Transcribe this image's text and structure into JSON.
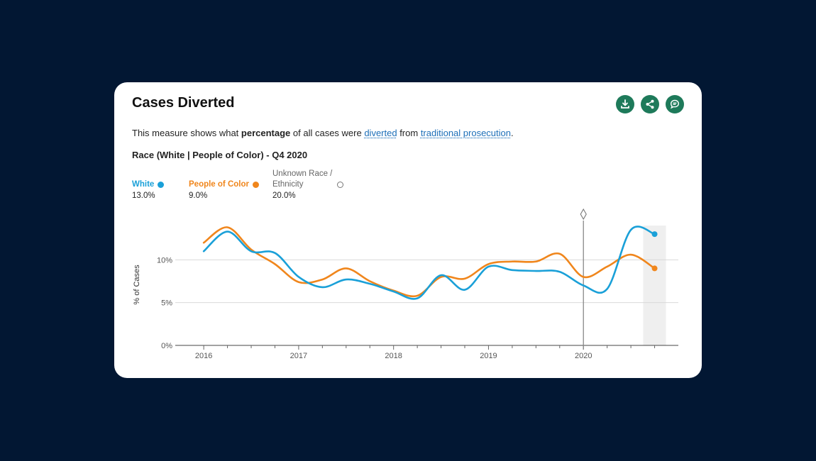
{
  "card": {
    "title": "Cases Diverted",
    "actions": [
      {
        "icon": "download-icon",
        "name": "download-button"
      },
      {
        "icon": "share-icon",
        "name": "share-button"
      },
      {
        "icon": "chat-info-icon",
        "name": "methodology-button"
      }
    ],
    "description": {
      "p1": "This measure shows what ",
      "bold": "percentage",
      "p2": " of all cases were ",
      "link1": "diverted",
      "p3": " from ",
      "link2": "traditional prosecution",
      "p4": "."
    },
    "subtitle": "Race (White | People of Color) - Q4 2020"
  },
  "legend": [
    {
      "name": "White",
      "value": "13.0%",
      "color": "#1aa0d8",
      "filled": true
    },
    {
      "name": "People of Color",
      "value": "9.0%",
      "color": "#f0861c",
      "filled": true
    },
    {
      "name": "Unknown Race / Ethnicity",
      "value": "20.0%",
      "color": "#666666",
      "filled": false
    }
  ],
  "chart_data": {
    "type": "line",
    "ylabel": "% of Cases",
    "xlabel": "",
    "xlim": [
      2015.7,
      2021.0
    ],
    "ylim": [
      0,
      15
    ],
    "y_ticks": [
      {
        "v": 0,
        "label": "0%"
      },
      {
        "v": 5,
        "label": "5%"
      },
      {
        "v": 10,
        "label": "10%"
      }
    ],
    "x_ticks": [
      {
        "v": 2016,
        "label": "2016"
      },
      {
        "v": 2017,
        "label": "2017"
      },
      {
        "v": 2018,
        "label": "2018"
      },
      {
        "v": 2019,
        "label": "2019"
      },
      {
        "v": 2020,
        "label": "2020"
      }
    ],
    "grid": true,
    "marker_year": 2020,
    "highlight": [
      2020.63,
      2020.87
    ],
    "series": [
      {
        "name": "White",
        "color": "#1aa0d8",
        "points": [
          [
            2016.0,
            11.0
          ],
          [
            2016.25,
            13.3
          ],
          [
            2016.5,
            11.0
          ],
          [
            2016.75,
            10.8
          ],
          [
            2017.0,
            8.0
          ],
          [
            2017.25,
            6.8
          ],
          [
            2017.5,
            7.7
          ],
          [
            2017.75,
            7.2
          ],
          [
            2018.0,
            6.3
          ],
          [
            2018.25,
            5.5
          ],
          [
            2018.5,
            8.2
          ],
          [
            2018.75,
            6.5
          ],
          [
            2019.0,
            9.2
          ],
          [
            2019.25,
            8.8
          ],
          [
            2019.5,
            8.7
          ],
          [
            2019.75,
            8.6
          ],
          [
            2020.0,
            7.0
          ],
          [
            2020.25,
            6.6
          ],
          [
            2020.5,
            13.5
          ],
          [
            2020.75,
            13.0
          ]
        ]
      },
      {
        "name": "People of Color",
        "color": "#f0861c",
        "points": [
          [
            2016.0,
            12.0
          ],
          [
            2016.25,
            13.8
          ],
          [
            2016.5,
            11.2
          ],
          [
            2016.75,
            9.5
          ],
          [
            2017.0,
            7.4
          ],
          [
            2017.25,
            7.7
          ],
          [
            2017.5,
            9.0
          ],
          [
            2017.75,
            7.5
          ],
          [
            2018.0,
            6.4
          ],
          [
            2018.25,
            5.8
          ],
          [
            2018.5,
            8.0
          ],
          [
            2018.75,
            7.8
          ],
          [
            2019.0,
            9.5
          ],
          [
            2019.25,
            9.8
          ],
          [
            2019.5,
            9.8
          ],
          [
            2019.75,
            10.7
          ],
          [
            2020.0,
            8.0
          ],
          [
            2020.25,
            9.2
          ],
          [
            2020.5,
            10.6
          ],
          [
            2020.75,
            9.0
          ]
        ]
      }
    ]
  }
}
